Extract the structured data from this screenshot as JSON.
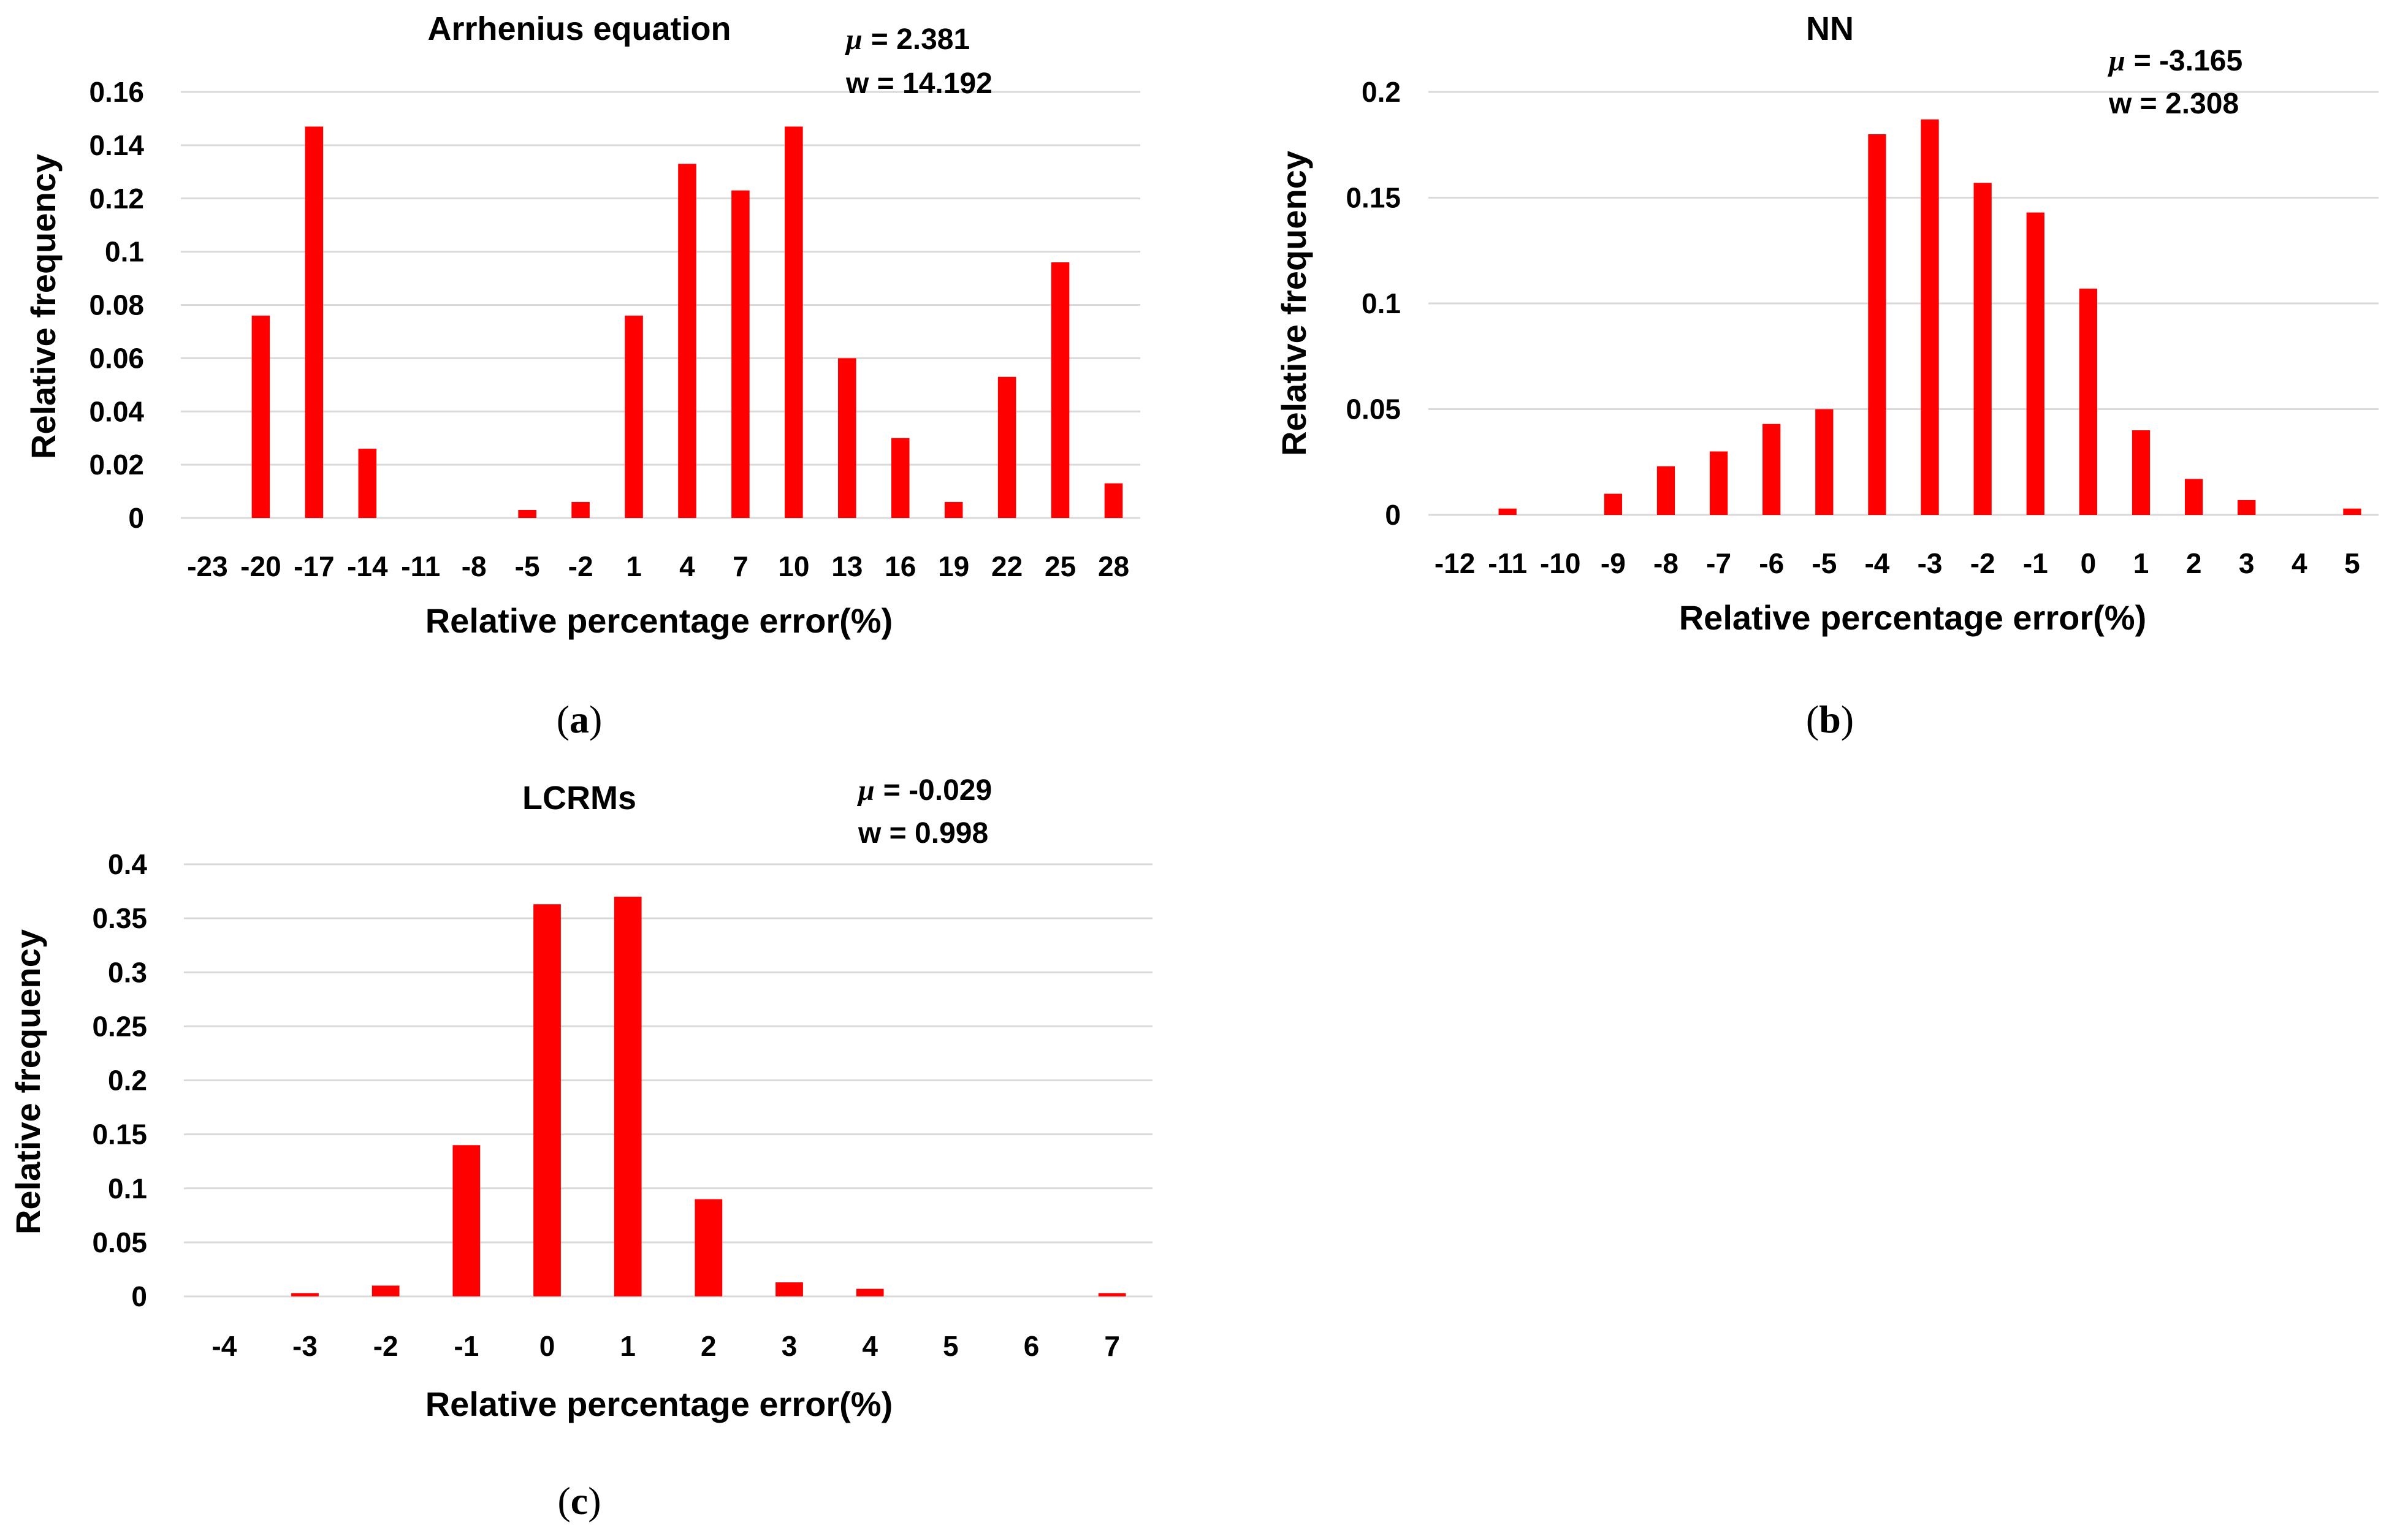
{
  "bar_color": "#ff0000",
  "chart_data": [
    {
      "type": "bar",
      "title": "Arrhenius equation",
      "mu_label": "μ",
      "mu_value": "= 2.381",
      "w_text": "w = 14.192",
      "xlabel": "Relative percentage error(%)",
      "ylabel": "Relative frequency",
      "caption": "a",
      "ylim": [
        0,
        0.16
      ],
      "yticks": [
        "0",
        "0.02",
        "0.04",
        "0.06",
        "0.08",
        "0.1",
        "0.12",
        "0.14",
        "0.16"
      ],
      "categories": [
        "-23",
        "-20",
        "-17",
        "-14",
        "-11",
        "-8",
        "-5",
        "-2",
        "1",
        "4",
        "7",
        "10",
        "13",
        "16",
        "19",
        "22",
        "25",
        "28"
      ],
      "values": [
        0,
        0.076,
        0.147,
        0.026,
        0,
        0,
        0.003,
        0.006,
        0.076,
        0.133,
        0.123,
        0.147,
        0.06,
        0.03,
        0.006,
        0.053,
        0.096,
        0.013
      ]
    },
    {
      "type": "bar",
      "title": "NN",
      "mu_label": "μ",
      "mu_value": "= -3.165",
      "w_text": "w = 2.308",
      "xlabel": "Relative percentage error(%)",
      "ylabel": "Relative frequency",
      "caption": "b",
      "ylim": [
        0,
        0.2
      ],
      "yticks": [
        "0",
        "0.05",
        "0.1",
        "0.15",
        "0.2"
      ],
      "categories": [
        "-12",
        "-11",
        "-10",
        "-9",
        "-8",
        "-7",
        "-6",
        "-5",
        "-4",
        "-3",
        "-2",
        "-1",
        "0",
        "1",
        "2",
        "3",
        "4",
        "5"
      ],
      "values": [
        0,
        0.003,
        0,
        0.01,
        0.023,
        0.03,
        0.043,
        0.05,
        0.18,
        0.187,
        0.157,
        0.143,
        0.107,
        0.04,
        0.017,
        0.007,
        0,
        0.003
      ]
    },
    {
      "type": "bar",
      "title": "LCRMs",
      "mu_label": "μ",
      "mu_value": "= -0.029",
      "w_text": "w = 0.998",
      "xlabel": "Relative percentage error(%)",
      "ylabel": "Relative frequency",
      "caption": "c",
      "ylim": [
        0,
        0.4
      ],
      "yticks": [
        "0",
        "0.05",
        "0.1",
        "0.15",
        "0.2",
        "0.25",
        "0.3",
        "0.35",
        "0.4"
      ],
      "categories": [
        "-4",
        "-3",
        "-2",
        "-1",
        "0",
        "1",
        "2",
        "3",
        "4",
        "5",
        "6",
        "7"
      ],
      "values": [
        0,
        0.003,
        0.01,
        0.14,
        0.363,
        0.37,
        0.09,
        0.013,
        0.007,
        0,
        0,
        0.003
      ]
    }
  ]
}
